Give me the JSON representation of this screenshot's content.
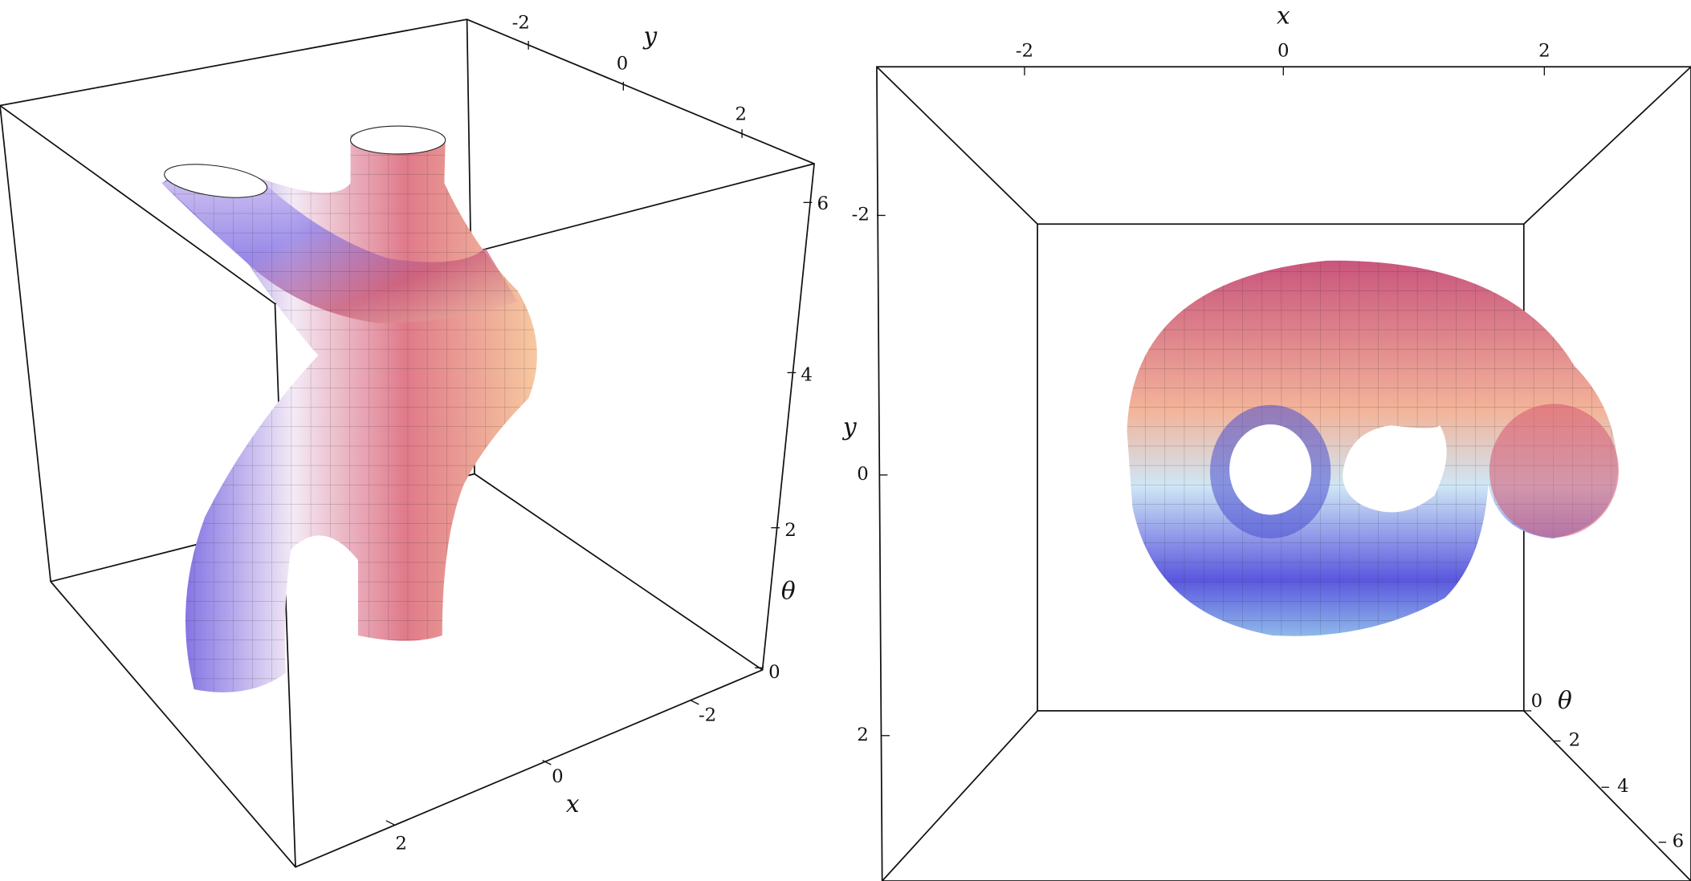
{
  "panels": [
    {
      "axes": {
        "x": {
          "label": "x",
          "ticks": [
            "-2",
            "0",
            "2"
          ]
        },
        "y": {
          "label": "y",
          "ticks": [
            "-2",
            "0",
            "2"
          ]
        },
        "theta": {
          "label": "θ",
          "ticks": [
            "0",
            "2",
            "4",
            "6"
          ]
        }
      }
    },
    {
      "axes": {
        "x": {
          "label": "x",
          "ticks": [
            "-2",
            "0",
            "2"
          ]
        },
        "y": {
          "label": "y",
          "ticks": [
            "-2",
            "0",
            "2"
          ]
        },
        "theta": {
          "label": "θ",
          "ticks": [
            "0",
            "2",
            "4",
            "6"
          ]
        }
      }
    }
  ]
}
